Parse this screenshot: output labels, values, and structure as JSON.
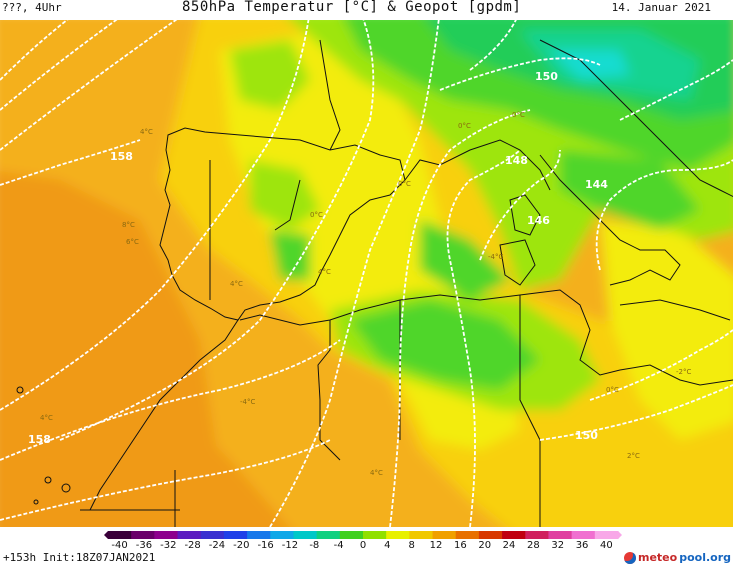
{
  "header": {
    "left": "???, 4Uhr",
    "title": "850hPa Temperatur [°C] & Geopot [gpdm]",
    "date": "14. Januar 2021"
  },
  "footer": {
    "run": "+153h Init:18Z07JAN2021",
    "logo_a": "meteo",
    "logo_b": "pool.org"
  },
  "legend": {
    "ticks": [
      "-40",
      "-36",
      "-32",
      "-28",
      "-24",
      "-20",
      "-16",
      "-12",
      "-8",
      "-4",
      "0",
      "4",
      "8",
      "12",
      "16",
      "20",
      "24",
      "28",
      "32",
      "36",
      "40"
    ],
    "colors": [
      "#3a003a",
      "#6a006a",
      "#8d008d",
      "#5c1cc0",
      "#3a30d0",
      "#2040e8",
      "#1878ea",
      "#10a8e8",
      "#00c8c8",
      "#10d080",
      "#40d020",
      "#90e000",
      "#e8f000",
      "#f0c800",
      "#f0a000",
      "#e87000",
      "#d83800",
      "#c00010",
      "#d0205e",
      "#e040a0",
      "#f070d0",
      "#f8a8e8"
    ]
  },
  "isolines": [
    {
      "label": "158",
      "where": "west"
    },
    {
      "label": "158",
      "where": "southwest"
    },
    {
      "label": "150",
      "where": "alps"
    },
    {
      "label": "148",
      "where": "corsica"
    },
    {
      "label": "146",
      "where": "sardinia"
    },
    {
      "label": "144",
      "where": "italy"
    },
    {
      "label": "150",
      "where": "libya"
    }
  ],
  "temp_labels": [
    "4°C",
    "0°C",
    "0°C",
    "0°C",
    "-4°C",
    "4°C",
    "8°C",
    "4°C",
    "0°C",
    "-4°C",
    "-2°C",
    "2°C",
    "4°C",
    "4°C",
    "0°C",
    "6°C"
  ],
  "colors": {
    "orange_dark": "#f09a12",
    "orange": "#f4b01a",
    "yellow_orange": "#f8d010",
    "yellow": "#f3ec0a",
    "lime": "#9ee50e",
    "green": "#4fd62a",
    "green_dark": "#22cd59",
    "teal": "#13d390",
    "cyan": "#15dcd0"
  }
}
